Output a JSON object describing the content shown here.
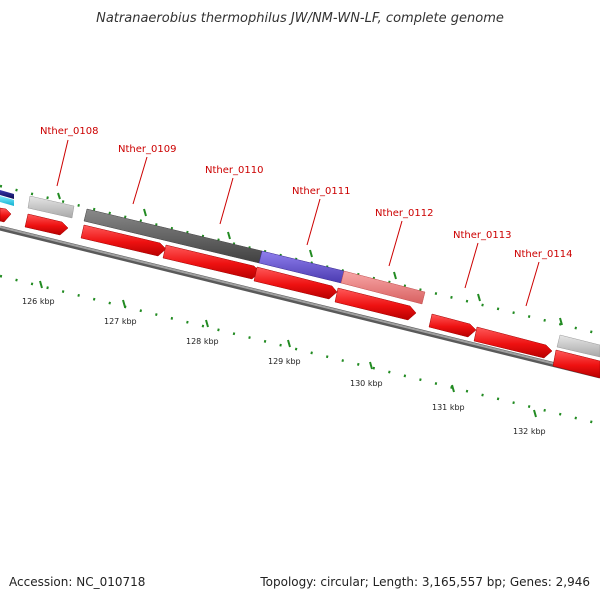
{
  "title": "Natranaerobius thermophilus JW/NM-WN-LF, complete genome",
  "footer": {
    "accession": "Accession: NC_010718",
    "summary": "Topology: circular; Length: 3,165,557 bp; Genes: 2,946"
  },
  "scale_labels": [
    "126 kbp",
    "127 kbp",
    "128 kbp",
    "129 kbp",
    "130 kbp",
    "131 kbp",
    "132 kbp"
  ],
  "genes": [
    {
      "label": "Nther_0108"
    },
    {
      "label": "Nther_0109"
    },
    {
      "label": "Nther_0110"
    },
    {
      "label": "Nther_0111"
    },
    {
      "label": "Nther_0112"
    },
    {
      "label": "Nther_0113"
    },
    {
      "label": "Nther_0114"
    }
  ],
  "colors": {
    "cds": "#ee1111",
    "grey_light": "#c8c8c8",
    "grey_dark": "#606060",
    "blue": "#6a5acd",
    "pink": "#f08080",
    "cyan": "#33d6f0",
    "navy": "#1a1a80",
    "backbone": "#8a8a8a",
    "tick": "#228b22",
    "label": "#cc0000"
  }
}
